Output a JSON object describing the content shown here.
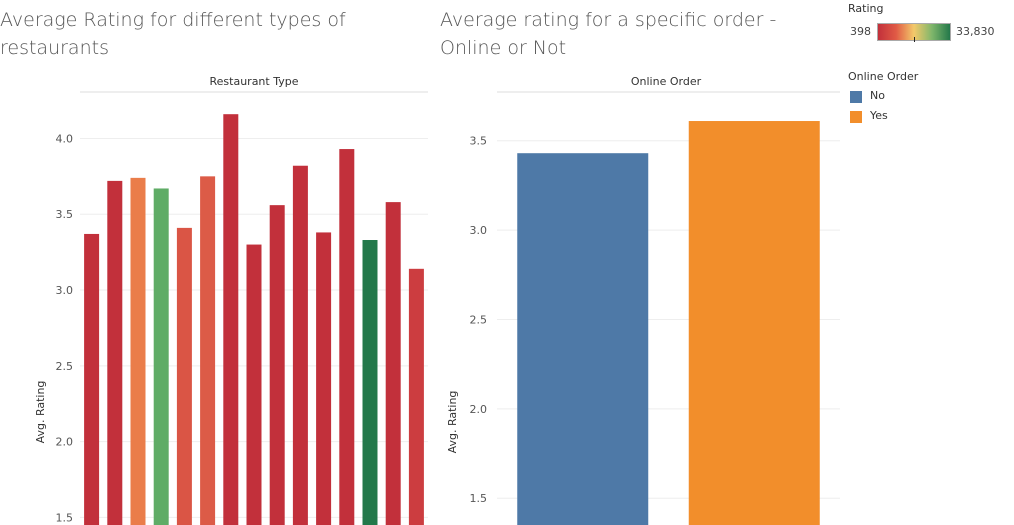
{
  "titles": {
    "left": "Average Rating for different types of restaurants",
    "right": "Average rating for a specific order - Online or Not"
  },
  "rating_legend": {
    "title": "Rating",
    "min_label": "398",
    "max_label": "33,830",
    "gradient_colors": [
      "#c2303b",
      "#e05a45",
      "#f3c96a",
      "#7fb66b",
      "#23784a"
    ]
  },
  "online_legend": {
    "title": "Online Order",
    "items": [
      {
        "label": "No",
        "color": "#4e79a7"
      },
      {
        "label": "Yes",
        "color": "#f28e2b"
      }
    ]
  },
  "chart_data": [
    {
      "type": "bar",
      "header": "Restaurant Type",
      "ylabel": "Avg. Rating",
      "ylim": [
        1.45,
        4.28
      ],
      "yticks": [
        1.5,
        2.0,
        2.5,
        3.0,
        3.5,
        4.0
      ],
      "values": [
        3.37,
        3.72,
        3.74,
        3.67,
        3.41,
        3.75,
        4.16,
        3.3,
        3.56,
        3.82,
        3.38,
        3.93,
        3.33,
        3.58,
        3.14
      ],
      "colors": [
        "#c2303b",
        "#c2303b",
        "#ea7d4a",
        "#5fac66",
        "#da5545",
        "#dc5b47",
        "#c2303b",
        "#c2303b",
        "#c2303b",
        "#c2303b",
        "#c2303b",
        "#c2303b",
        "#23784a",
        "#c2303b",
        "#cc3d40"
      ]
    },
    {
      "type": "bar",
      "header": "Online Order",
      "ylabel": "Avg. Rating",
      "ylim": [
        1.35,
        3.75
      ],
      "yticks": [
        1.5,
        2.0,
        2.5,
        3.0,
        3.5
      ],
      "categories": [
        "No",
        "Yes"
      ],
      "values": [
        3.43,
        3.61
      ],
      "colors": [
        "#4e79a7",
        "#f28e2b"
      ]
    }
  ]
}
